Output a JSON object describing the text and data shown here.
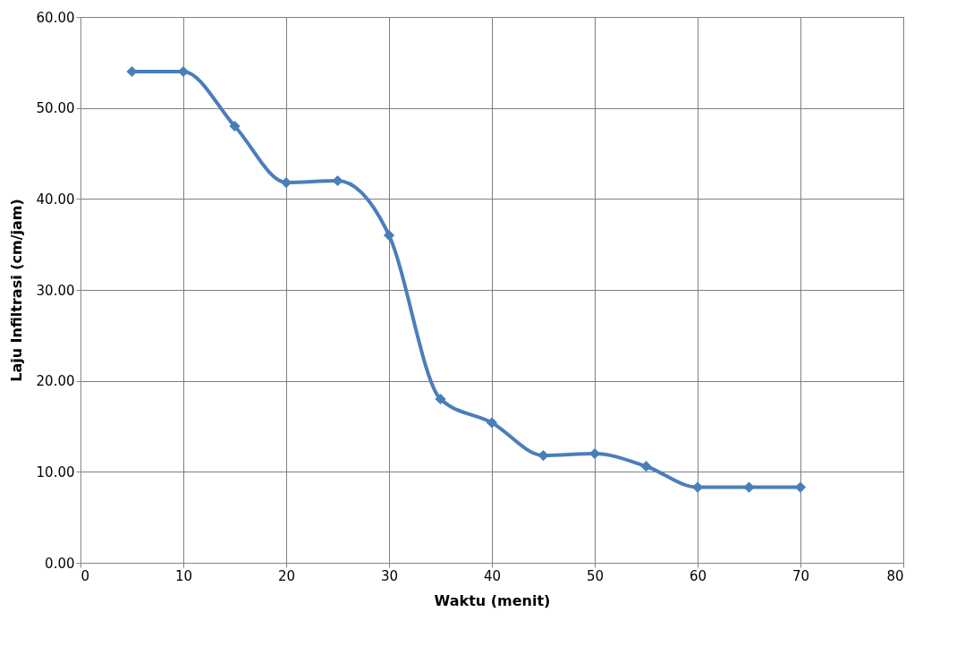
{
  "chart_data": {
    "type": "line",
    "xlabel": "Waktu (menit)",
    "ylabel": "Laju Infiltrasi (cm/jam)",
    "x": [
      5,
      10,
      15,
      20,
      25,
      30,
      35,
      40,
      45,
      50,
      55,
      60,
      65,
      70
    ],
    "series": [
      {
        "color": "#4a7ebb",
        "values": [
          54,
          54,
          48,
          41.8,
          42,
          36,
          18,
          15.4,
          11.8,
          12,
          10.6,
          8.3,
          8.3,
          8.3
        ]
      }
    ],
    "xlim": [
      0,
      80
    ],
    "xticks": [
      0,
      10,
      20,
      30,
      40,
      50,
      60,
      70,
      80
    ],
    "ylim": [
      0,
      60
    ],
    "yticks": [
      {
        "value": 0,
        "label": "0.00"
      },
      {
        "value": 10,
        "label": "10.00"
      },
      {
        "value": 20,
        "label": "20.00"
      },
      {
        "value": 30,
        "label": "30.00"
      },
      {
        "value": 40,
        "label": "40.00"
      },
      {
        "value": 50,
        "label": "50.00"
      },
      {
        "value": 60,
        "label": "60.00"
      }
    ],
    "grid": true,
    "marker": "diamond",
    "line_style": "solid",
    "legend": false
  }
}
